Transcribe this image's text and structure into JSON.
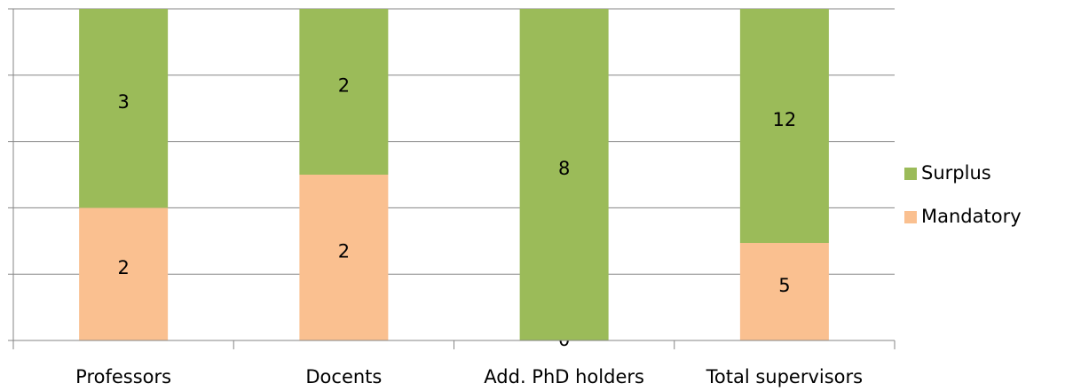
{
  "chart_data": {
    "type": "bar",
    "stacking": "percent",
    "categories": [
      "Professors",
      "Docents",
      "Add. PhD holders",
      "Total supervisors"
    ],
    "series": [
      {
        "name": "Mandatory",
        "color": "#fac090",
        "values": [
          2,
          2,
          0,
          5
        ]
      },
      {
        "name": "Surplus",
        "color": "#9bbb59",
        "values": [
          3,
          2,
          8,
          12
        ]
      }
    ],
    "ylim": [
      0,
      100
    ],
    "yticks": [
      0,
      20,
      40,
      60,
      80,
      100
    ],
    "show_ytick_labels": false,
    "grid": true,
    "legend": "right"
  }
}
